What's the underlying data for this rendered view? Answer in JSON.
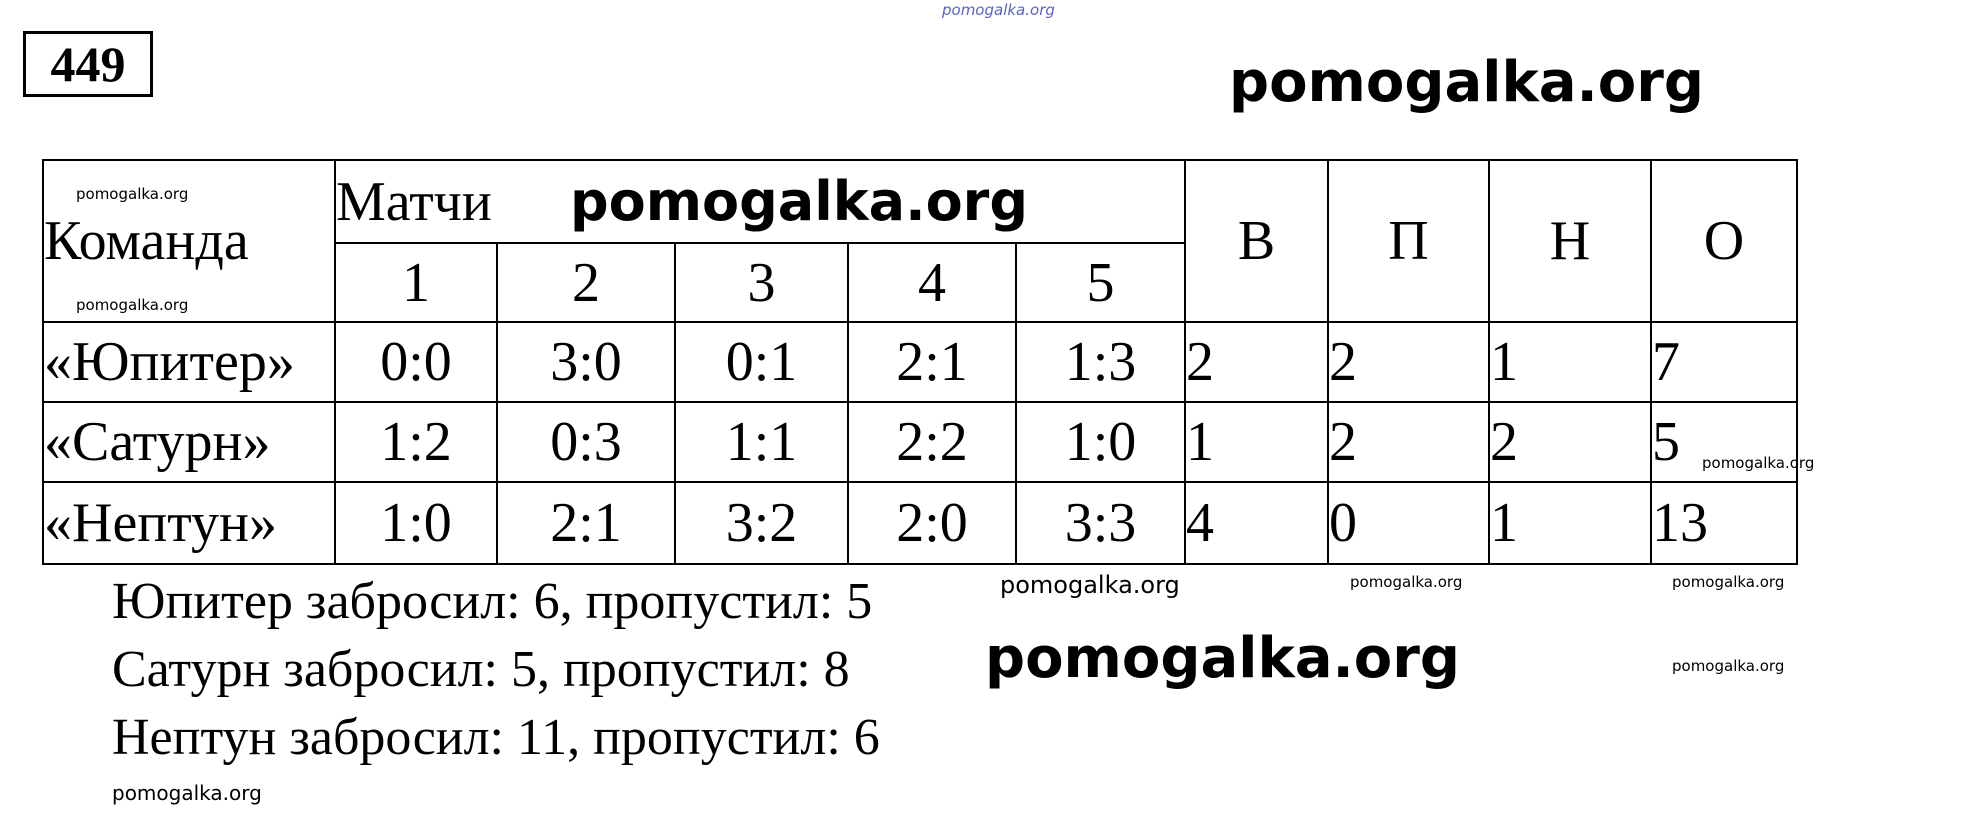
{
  "problem_number": "449",
  "watermark": "pomogalka.org",
  "table": {
    "team_header": "Команда",
    "matches_header": "Матчи",
    "match_numbers": [
      "1",
      "2",
      "3",
      "4",
      "5"
    ],
    "stat_headers": [
      "В",
      "П",
      "Н",
      "О"
    ],
    "rows": [
      {
        "team": "«Юпитер»",
        "scores": [
          "0:0",
          "3:0",
          "0:1",
          "2:1",
          "1:3"
        ],
        "stats": [
          "2",
          "2",
          "1",
          "7"
        ]
      },
      {
        "team": "«Сатурн»",
        "scores": [
          "1:2",
          "0:3",
          "1:1",
          "2:2",
          "1:0"
        ],
        "stats": [
          "1",
          "2",
          "2",
          "5"
        ]
      },
      {
        "team": "«Нептун»",
        "scores": [
          "1:0",
          "2:1",
          "3:2",
          "2:0",
          "3:3"
        ],
        "stats": [
          "4",
          "0",
          "1",
          "13"
        ]
      }
    ]
  },
  "summary": [
    "Юпитер забросил: 6, пропустил: 5",
    "Сатурн забросил: 5, пропустил: 8",
    "Нептун забросил: 11, пропустил: 6"
  ]
}
